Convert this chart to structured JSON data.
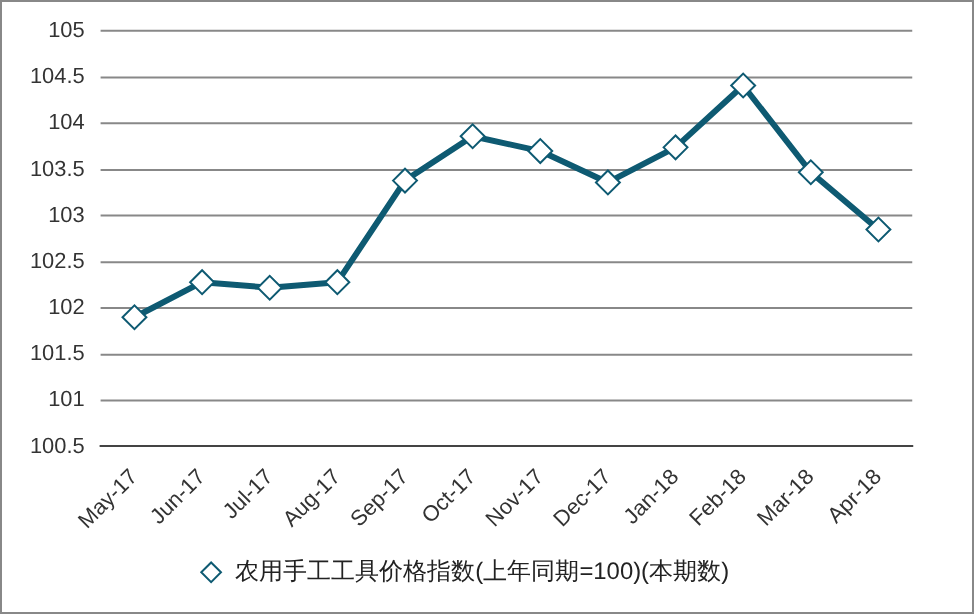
{
  "chart_data": {
    "type": "line",
    "categories": [
      "May-17",
      "Jun-17",
      "Jul-17",
      "Aug-17",
      "Sep-17",
      "Oct-17",
      "Nov-17",
      "Dec-17",
      "Jan-18",
      "Feb-18",
      "Mar-18",
      "Apr-18"
    ],
    "series": [
      {
        "name": "农用手工工具价格指数(上年同期=100)(本期数)",
        "color": "#0e5a72",
        "values": [
          101.9,
          102.28,
          102.22,
          102.28,
          103.38,
          103.86,
          103.7,
          103.36,
          103.74,
          104.41,
          103.47,
          102.85
        ]
      }
    ],
    "ylim": [
      100.5,
      105
    ],
    "yticks": [
      100.5,
      101,
      101.5,
      102,
      102.5,
      103,
      103.5,
      104,
      104.5,
      105
    ],
    "grid": "y",
    "legend": "bottom",
    "marker": "diamond",
    "line_style": "solid"
  }
}
